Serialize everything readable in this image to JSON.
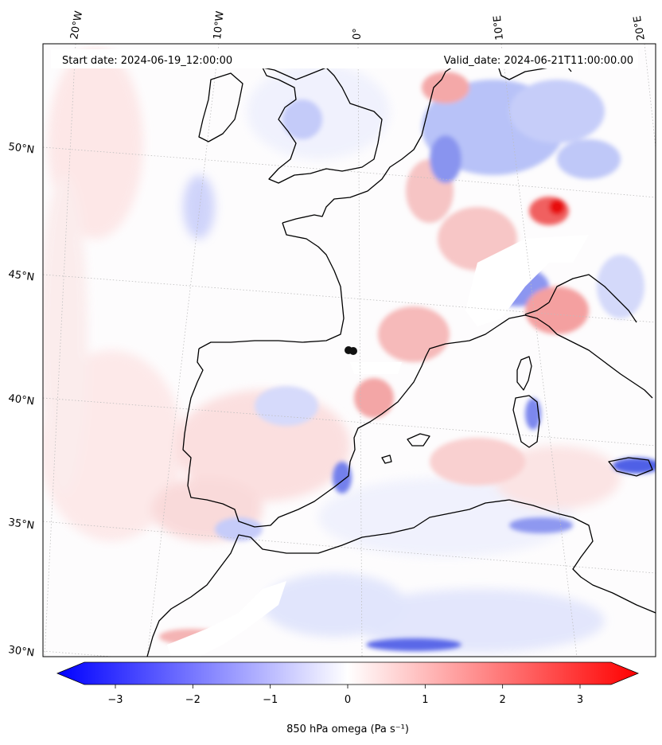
{
  "header": {
    "start_date": "Start date: 2024-06-19_12:00:00",
    "valid_date": "Valid_date: 2024-06-21T11:00:00.00"
  },
  "lon_labels": [
    "20°W",
    "10°W",
    "0°",
    "10°E",
    "20°E"
  ],
  "lat_labels": [
    "50°N",
    "45°N",
    "40°N",
    "35°N",
    "30°N"
  ],
  "colorbar": {
    "label": "850 hPa omega (Pa s⁻¹)",
    "ticks": [
      "−3",
      "−2",
      "−1",
      "0",
      "1",
      "2",
      "3"
    ],
    "min": -3.75,
    "max": 3.75,
    "colors": {
      "low": "#0000ff",
      "mid": "#ffffff",
      "high": "#ff0000"
    }
  },
  "map": {
    "projection": "lambert-conformal",
    "field": "850 hPa omega",
    "coastline_color": "#000000",
    "gridline_style": "dotted-grey"
  }
}
